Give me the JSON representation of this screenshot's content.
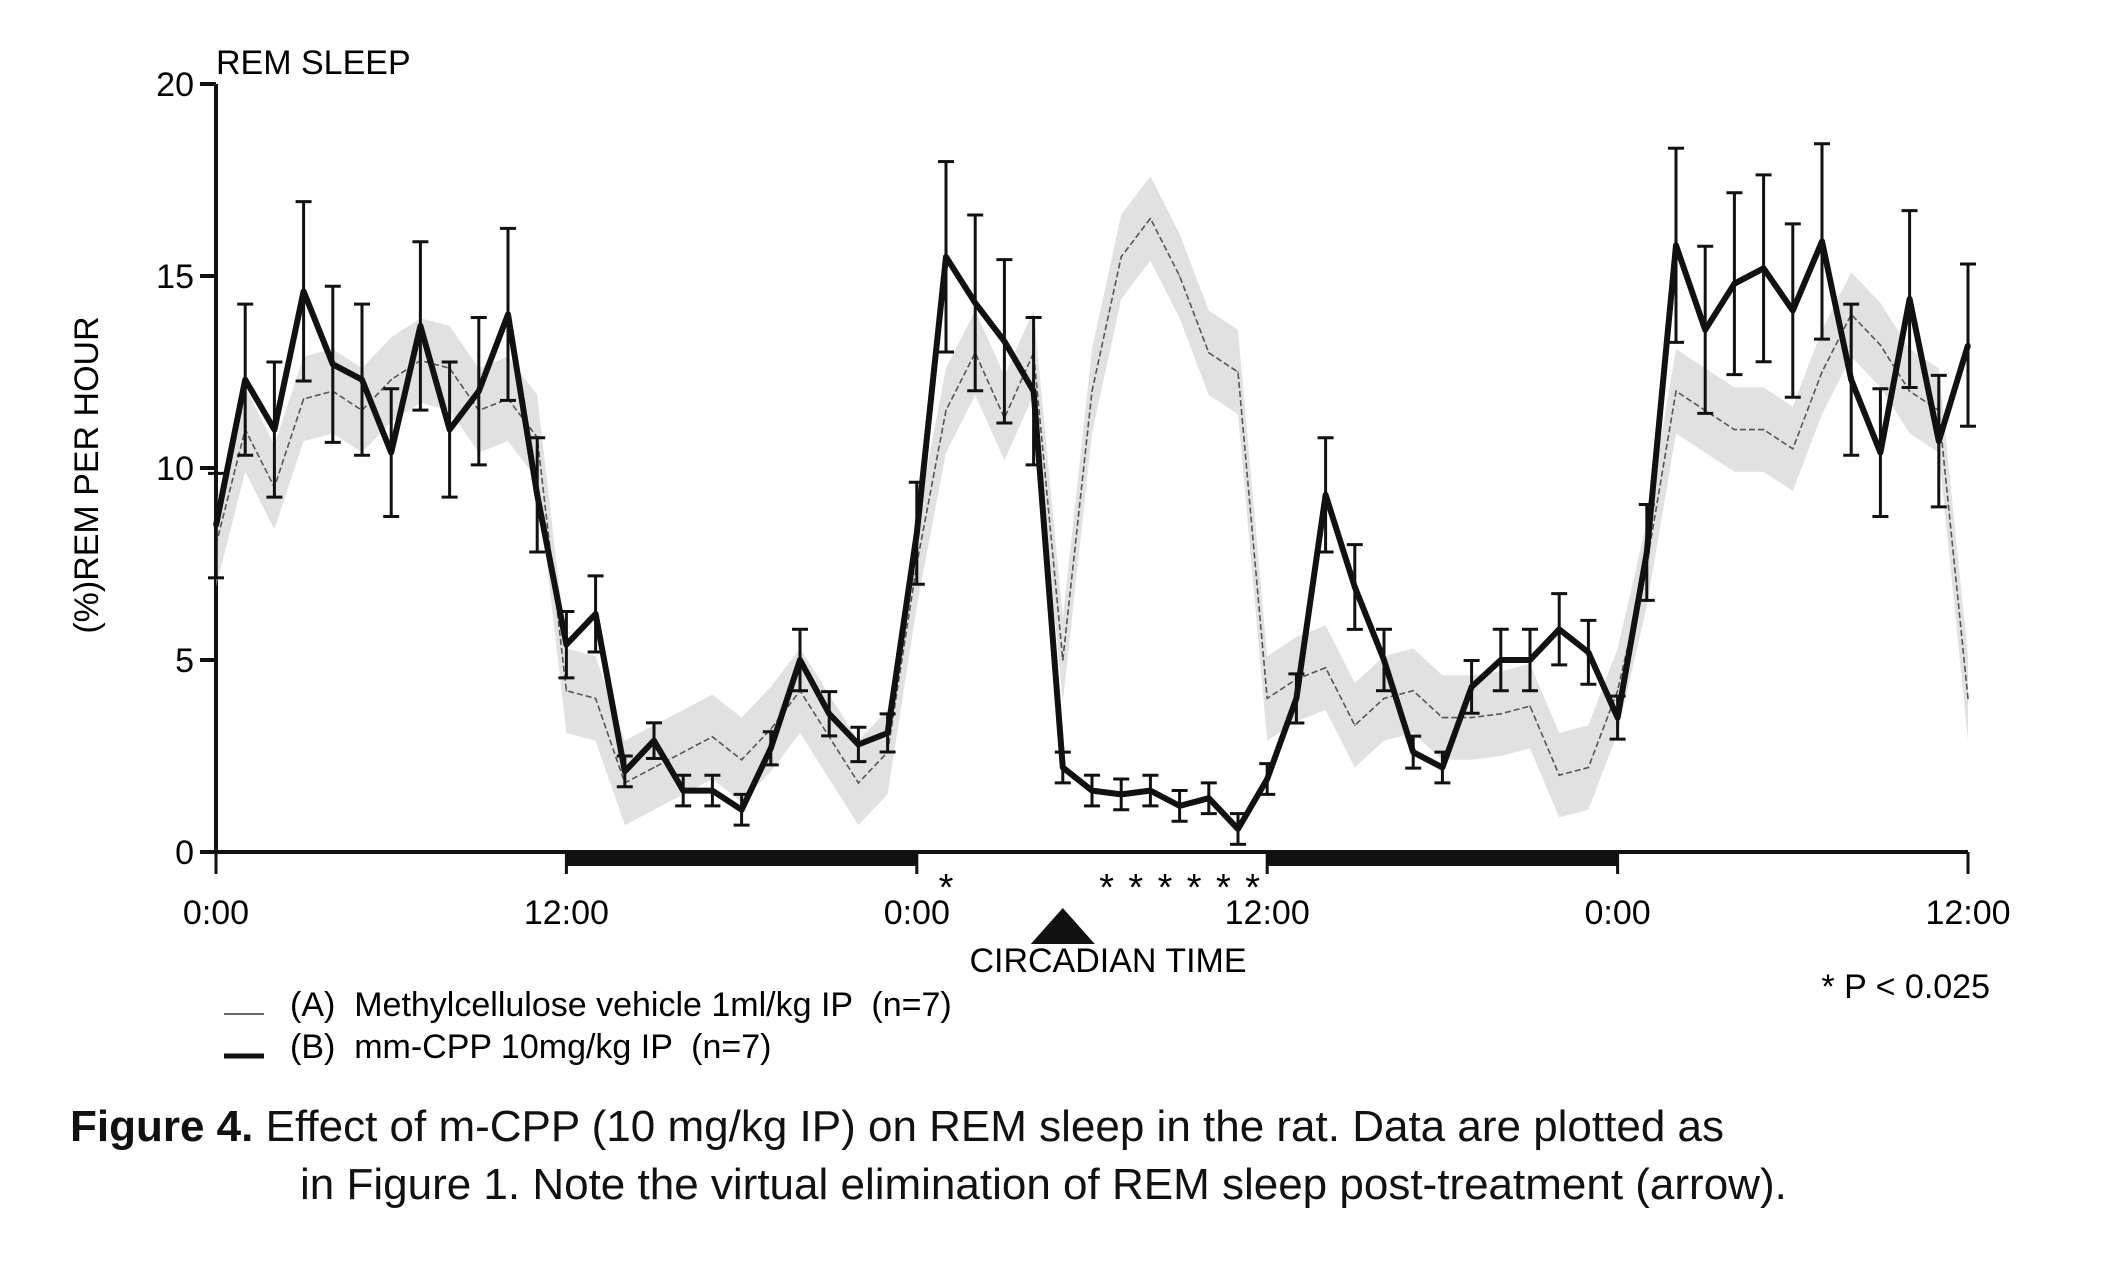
{
  "chart_data": {
    "type": "line",
    "title": "REM SLEEP",
    "xlabel": "CIRCADIAN TIME",
    "ylabel": "(%)REM PER HOUR",
    "x_unit": "hours from start",
    "xlim": [
      0,
      60
    ],
    "ylim": [
      0,
      20
    ],
    "y_ticks": [
      0,
      5,
      10,
      15,
      20
    ],
    "x_ticks": [
      {
        "x": 0,
        "label": "0:00"
      },
      {
        "x": 12,
        "label": "12:00"
      },
      {
        "x": 24,
        "label": "0:00"
      },
      {
        "x": 36,
        "label": "12:00"
      },
      {
        "x": 48,
        "label": "0:00"
      },
      {
        "x": 60,
        "label": "12:00"
      }
    ],
    "dark_periods": [
      [
        12,
        24
      ],
      [
        36,
        48
      ]
    ],
    "treatment_time": 29,
    "significance_marks": [
      {
        "x": 25,
        "label": "*"
      },
      {
        "x": 30.5,
        "label": "*"
      },
      {
        "x": 31.5,
        "label": "*"
      },
      {
        "x": 32.5,
        "label": "*"
      },
      {
        "x": 33.5,
        "label": "*"
      },
      {
        "x": 34.5,
        "label": "*"
      },
      {
        "x": 35.5,
        "label": "*"
      }
    ],
    "significance_note": "* P < 0.025",
    "legend": [
      {
        "key": "A",
        "label": "(A)  Methylcellulose vehicle 1ml/kg IP  (n=7)",
        "style": "thin"
      },
      {
        "key": "B",
        "label": "(B)  mm-CPP 10mg/kg IP  (n=7)",
        "style": "thick"
      }
    ],
    "series": [
      {
        "name": "(B) mm-CPP 10mg/kg IP (n=7)",
        "style": "thick",
        "x": [
          0,
          1,
          2,
          3,
          4,
          5,
          6,
          7,
          8,
          9,
          10,
          11,
          12,
          13,
          14,
          15,
          16,
          17,
          18,
          19,
          20,
          21,
          22,
          23,
          24,
          25,
          26,
          27,
          28,
          29,
          30,
          31,
          32,
          33,
          34,
          35,
          36,
          37,
          38,
          39,
          40,
          41,
          42,
          43,
          44,
          45,
          46,
          47,
          48,
          49,
          50,
          51,
          52,
          53,
          54,
          55,
          56,
          57,
          58,
          59,
          60
        ],
        "values": [
          8.5,
          12.3,
          11.0,
          14.6,
          12.7,
          12.3,
          10.4,
          13.7,
          11.0,
          12.0,
          14.0,
          9.3,
          5.4,
          6.2,
          2.1,
          2.9,
          1.6,
          1.6,
          1.1,
          2.7,
          5.0,
          3.6,
          2.8,
          3.1,
          8.3,
          15.5,
          14.3,
          13.3,
          12.0,
          2.2,
          1.6,
          1.5,
          1.6,
          1.2,
          1.4,
          0.6,
          1.9,
          4.0,
          9.3,
          6.9,
          5.0,
          2.6,
          2.2,
          4.3,
          5.0,
          5.0,
          5.8,
          5.2,
          3.5,
          7.8,
          15.8,
          13.6,
          14.8,
          15.2,
          14.1,
          15.9,
          12.3,
          10.4,
          14.4,
          10.7,
          13.2
        ]
      },
      {
        "name": "(A) Methylcellulose vehicle 1ml/kg IP (n=7)",
        "style": "thin",
        "x": [
          0,
          1,
          2,
          3,
          4,
          5,
          6,
          7,
          8,
          9,
          10,
          11,
          12,
          13,
          14,
          15,
          16,
          17,
          18,
          19,
          20,
          21,
          22,
          23,
          24,
          25,
          26,
          27,
          28,
          29,
          30,
          31,
          32,
          33,
          34,
          35,
          36,
          37,
          38,
          39,
          40,
          41,
          42,
          43,
          44,
          45,
          46,
          47,
          48,
          49,
          50,
          51,
          52,
          53,
          54,
          55,
          56,
          57,
          58,
          59,
          60
        ],
        "values": [
          8.0,
          11.0,
          9.5,
          11.8,
          12.0,
          11.5,
          12.3,
          12.8,
          12.6,
          11.5,
          11.8,
          10.8,
          4.2,
          4.0,
          1.8,
          2.2,
          2.6,
          3.0,
          2.4,
          3.2,
          4.2,
          3.0,
          1.8,
          2.6,
          7.5,
          11.5,
          13.0,
          11.3,
          13.0,
          5.0,
          12.0,
          15.5,
          16.5,
          15.0,
          13.0,
          12.5,
          4.0,
          4.5,
          4.8,
          3.3,
          4.0,
          4.2,
          3.5,
          3.5,
          3.6,
          3.8,
          2.0,
          2.2,
          4.2,
          7.5,
          12.0,
          11.5,
          11.0,
          11.0,
          10.5,
          12.5,
          14.0,
          13.2,
          12.0,
          11.5,
          4.0
        ]
      }
    ]
  },
  "caption": {
    "label": "Figure 4.",
    "line1": "Effect of m-CPP (10 mg/kg IP) on REM sleep in the rat.  Data are plotted as",
    "line2": "in Figure 1.  Note the virtual elimination of REM sleep post-treatment (arrow)."
  }
}
